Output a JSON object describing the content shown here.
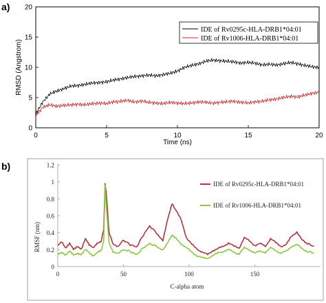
{
  "chart_data": [
    {
      "type": "line",
      "panel_label": "a)",
      "title": "",
      "xlabel": "Time (ns)",
      "ylabel": "RMSD (Angstrom)",
      "xlim": [
        0,
        20
      ],
      "ylim": [
        0,
        20
      ],
      "xticks": [
        "0",
        "5",
        "10",
        "15",
        "20"
      ],
      "yticks": [
        "0",
        "5",
        "10",
        "15",
        "20"
      ],
      "legend_position": "top-right",
      "colors": {
        "series_1": "#000000",
        "series_2": "#d41c1c"
      },
      "series": [
        {
          "name": "IDE of Rv0295c-HLA-DRB1*04:01",
          "x": [
            0,
            0.5,
            1,
            1.5,
            2,
            2.5,
            3,
            3.5,
            4,
            4.5,
            5,
            5.5,
            6,
            6.5,
            7,
            7.5,
            8,
            8.5,
            9,
            9.5,
            10,
            10.5,
            11,
            11.5,
            12,
            12.5,
            13,
            13.5,
            14,
            14.5,
            15,
            15.5,
            16,
            16.5,
            17,
            17.5,
            18,
            18.5,
            19,
            19.5,
            20
          ],
          "y": [
            2.3,
            4.3,
            5.6,
            6.1,
            6.5,
            6.9,
            7.0,
            7.2,
            7.4,
            7.5,
            7.6,
            7.9,
            8.1,
            8.3,
            8.5,
            8.6,
            8.7,
            8.6,
            8.8,
            9.0,
            9.4,
            10.0,
            10.3,
            10.6,
            11.0,
            11.2,
            11.1,
            11.0,
            10.9,
            10.7,
            10.8,
            10.7,
            10.4,
            10.5,
            10.4,
            10.6,
            10.8,
            10.6,
            10.3,
            10.1,
            10.0
          ]
        },
        {
          "name": "IDE of Rv1006-HLA-DRB1*04:01",
          "x": [
            0,
            0.5,
            1,
            1.5,
            2,
            2.5,
            3,
            3.5,
            4,
            4.5,
            5,
            5.5,
            6,
            6.5,
            7,
            7.5,
            8,
            8.5,
            9,
            9.5,
            10,
            10.5,
            11,
            11.5,
            12,
            12.5,
            13,
            13.5,
            14,
            14.5,
            15,
            15.5,
            16,
            16.5,
            17,
            17.5,
            18,
            18.5,
            19,
            19.5,
            20
          ],
          "y": [
            2.0,
            3.4,
            3.8,
            3.6,
            3.7,
            3.8,
            3.9,
            3.8,
            4.0,
            4.1,
            4.0,
            4.3,
            4.4,
            4.5,
            4.3,
            4.4,
            4.2,
            4.1,
            4.0,
            4.2,
            4.1,
            4.0,
            4.1,
            4.3,
            4.2,
            4.1,
            4.2,
            4.3,
            4.4,
            4.2,
            4.1,
            4.3,
            4.4,
            4.6,
            4.8,
            5.0,
            5.2,
            5.1,
            5.4,
            5.7,
            5.9
          ]
        }
      ]
    },
    {
      "type": "line",
      "panel_label": "b)",
      "title": "",
      "xlabel": "C-alpha atom",
      "ylabel": "RMSF (nm)",
      "xlim": [
        0,
        200
      ],
      "ylim": [
        0,
        1.2
      ],
      "xticks": [
        "0",
        "50",
        "100",
        "150"
      ],
      "yticks": [
        "0",
        "0.2",
        "0.4",
        "0.6",
        "0.8",
        "1",
        "1.2"
      ],
      "legend_position": "right",
      "colors": {
        "series_1": "#b5323c",
        "series_2": "#8dc63f"
      },
      "series": [
        {
          "name": "IDE of Rv0295c-HLA-DRB1*04:01",
          "x": [
            0,
            3,
            6,
            9,
            12,
            15,
            18,
            21,
            24,
            27,
            30,
            33,
            35,
            36,
            37,
            39,
            42,
            46,
            50,
            55,
            60,
            65,
            70,
            75,
            80,
            84,
            87,
            90,
            94,
            98,
            102,
            106,
            110,
            114,
            118,
            122,
            126,
            130,
            134,
            138,
            142,
            146,
            150,
            154,
            158,
            162,
            166,
            170,
            174,
            178,
            182,
            186,
            190,
            195
          ],
          "y": [
            0.25,
            0.3,
            0.22,
            0.27,
            0.2,
            0.24,
            0.21,
            0.33,
            0.25,
            0.22,
            0.28,
            0.3,
            0.45,
            0.98,
            0.85,
            0.4,
            0.27,
            0.24,
            0.31,
            0.26,
            0.23,
            0.37,
            0.48,
            0.4,
            0.3,
            0.58,
            0.75,
            0.66,
            0.55,
            0.34,
            0.26,
            0.21,
            0.17,
            0.14,
            0.19,
            0.21,
            0.24,
            0.28,
            0.24,
            0.22,
            0.34,
            0.3,
            0.25,
            0.27,
            0.24,
            0.33,
            0.28,
            0.24,
            0.26,
            0.36,
            0.41,
            0.31,
            0.27,
            0.24
          ]
        },
        {
          "name": "IDE of Rv1006-HLA-DRB1*04:01",
          "x": [
            0,
            3,
            6,
            9,
            12,
            15,
            18,
            21,
            24,
            27,
            30,
            33,
            35,
            36,
            37,
            39,
            42,
            46,
            50,
            55,
            60,
            65,
            70,
            75,
            80,
            84,
            87,
            90,
            94,
            98,
            102,
            106,
            110,
            114,
            118,
            122,
            126,
            130,
            134,
            138,
            142,
            146,
            150,
            154,
            158,
            162,
            166,
            170,
            174,
            178,
            182,
            186,
            190,
            195
          ],
          "y": [
            0.15,
            0.17,
            0.13,
            0.18,
            0.14,
            0.16,
            0.14,
            0.2,
            0.16,
            0.13,
            0.17,
            0.19,
            0.3,
            0.95,
            0.7,
            0.28,
            0.18,
            0.15,
            0.2,
            0.18,
            0.14,
            0.22,
            0.27,
            0.24,
            0.19,
            0.3,
            0.37,
            0.33,
            0.27,
            0.22,
            0.17,
            0.13,
            0.1,
            0.1,
            0.13,
            0.16,
            0.18,
            0.2,
            0.17,
            0.15,
            0.22,
            0.2,
            0.16,
            0.18,
            0.17,
            0.22,
            0.19,
            0.16,
            0.18,
            0.24,
            0.26,
            0.21,
            0.18,
            0.16
          ]
        }
      ]
    }
  ]
}
